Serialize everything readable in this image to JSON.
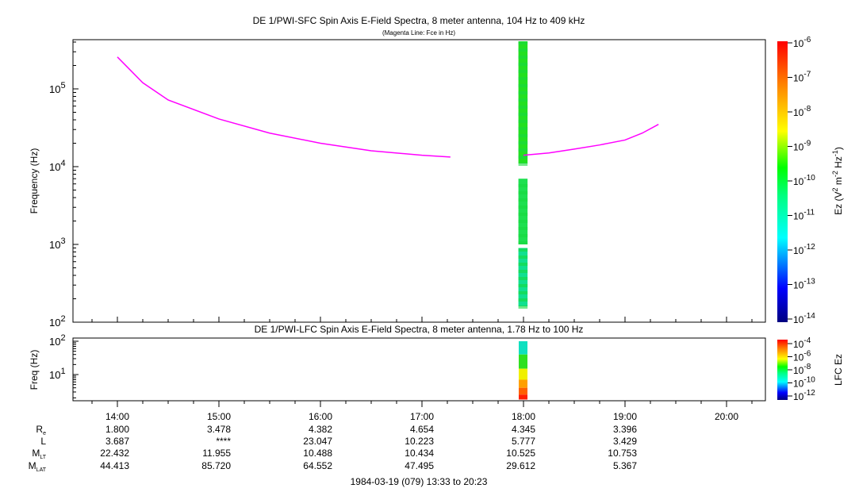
{
  "chart_data": [
    {
      "type": "heatmap",
      "title": "DE 1/PWI-SFC  Spin Axis E-Field Spectra, 8 meter antenna, 104 Hz to 409 kHz",
      "subtitle": "(Magenta Line: Fce in Hz)",
      "ylabel": "Frequency (Hz)",
      "ylim": [
        100,
        409000
      ],
      "yscale": "log",
      "ytick_labels": [
        "10^2",
        "10^3",
        "10^4",
        "10^5"
      ],
      "colorbar": {
        "label": "Ez (V^2 m^-2 Hz^-1)",
        "range": [
          "1e-14",
          "1e-6"
        ],
        "tick_labels": [
          "10^-6",
          "10^-7",
          "10^-8",
          "10^-9",
          "10^-10",
          "10^-11",
          "10^-12",
          "10^-13",
          "10^-14"
        ]
      },
      "fce_line": [
        {
          "segment": [
            [
              14.0,
              257000
            ],
            [
              14.25,
              120000
            ],
            [
              14.5,
              72000
            ],
            [
              15.0,
              41000
            ],
            [
              15.5,
              27000
            ],
            [
              16.0,
              20000
            ],
            [
              16.5,
              16000
            ],
            [
              17.0,
              14000
            ],
            [
              17.28,
              13300
            ]
          ]
        },
        {
          "segment": [
            [
              18.0,
              14000
            ],
            [
              18.25,
              15000
            ],
            [
              18.5,
              16800
            ],
            [
              18.75,
              19000
            ],
            [
              19.0,
              22000
            ],
            [
              19.17,
              27000
            ],
            [
              19.33,
              35000
            ]
          ]
        }
      ],
      "spectra_blocks": [
        {
          "t0": 17.95,
          "t1": 18.04,
          "f0": 11000,
          "f1": 409000,
          "color": "#22e020"
        },
        {
          "t0": 17.95,
          "t1": 18.04,
          "f0": 1000,
          "f1": 7000,
          "color": "#1ee050"
        },
        {
          "t0": 17.95,
          "t1": 18.04,
          "f0": 160,
          "f1": 900,
          "color": "#10e090"
        }
      ]
    },
    {
      "type": "heatmap",
      "title": "DE 1/PWI-LFC  Spin Axis E-Field Spectra, 8 meter antenna, 1.78 Hz to 100 Hz",
      "ylabel": "Freq (Hz)",
      "ylim": [
        1.78,
        100
      ],
      "yscale": "log",
      "ytick_labels": [
        "10^1",
        "10^2"
      ],
      "colorbar": {
        "label": "LFC Ez",
        "range": [
          "1e-12",
          "1e-4"
        ],
        "tick_labels": [
          "10^-4",
          "10^-6",
          "10^-8",
          "10^-10",
          "10^-12"
        ]
      },
      "spectra_blocks": [
        {
          "f0": 40,
          "f1": 100,
          "color": "#10e0c0"
        },
        {
          "f0": 15,
          "f1": 40,
          "color": "#30e020"
        },
        {
          "f0": 7,
          "f1": 15,
          "color": "#f0f000"
        },
        {
          "f0": 4,
          "f1": 7,
          "color": "#ffa000"
        },
        {
          "f0": 2.5,
          "f1": 4,
          "color": "#ff6000"
        },
        {
          "f0": 1.78,
          "f1": 2.5,
          "color": "#ff2000"
        }
      ]
    }
  ],
  "x_axis": {
    "tick_labels": [
      "14:00",
      "15:00",
      "16:00",
      "17:00",
      "18:00",
      "19:00",
      "20:00"
    ]
  },
  "ephemeris": {
    "rows": [
      {
        "label": "R",
        "sub": "e",
        "values": [
          "1.800",
          "3.478",
          "4.382",
          "4.654",
          "4.345",
          "3.396"
        ]
      },
      {
        "label": "L",
        "sub": "",
        "values": [
          "3.687",
          "****",
          "23.047",
          "10.223",
          "5.777",
          "3.429"
        ]
      },
      {
        "label": "M",
        "sub": "LT",
        "values": [
          "22.432",
          "11.955",
          "10.488",
          "10.434",
          "10.525",
          "10.753"
        ]
      },
      {
        "label": "M",
        "sub": "LAT",
        "values": [
          "44.413",
          "85.720",
          "64.552",
          "47.495",
          "29.612",
          "5.367"
        ]
      }
    ]
  },
  "footer": "1984-03-19 (079) 13:33 to 20:23",
  "colors": {
    "fce": "#ff00ff"
  }
}
